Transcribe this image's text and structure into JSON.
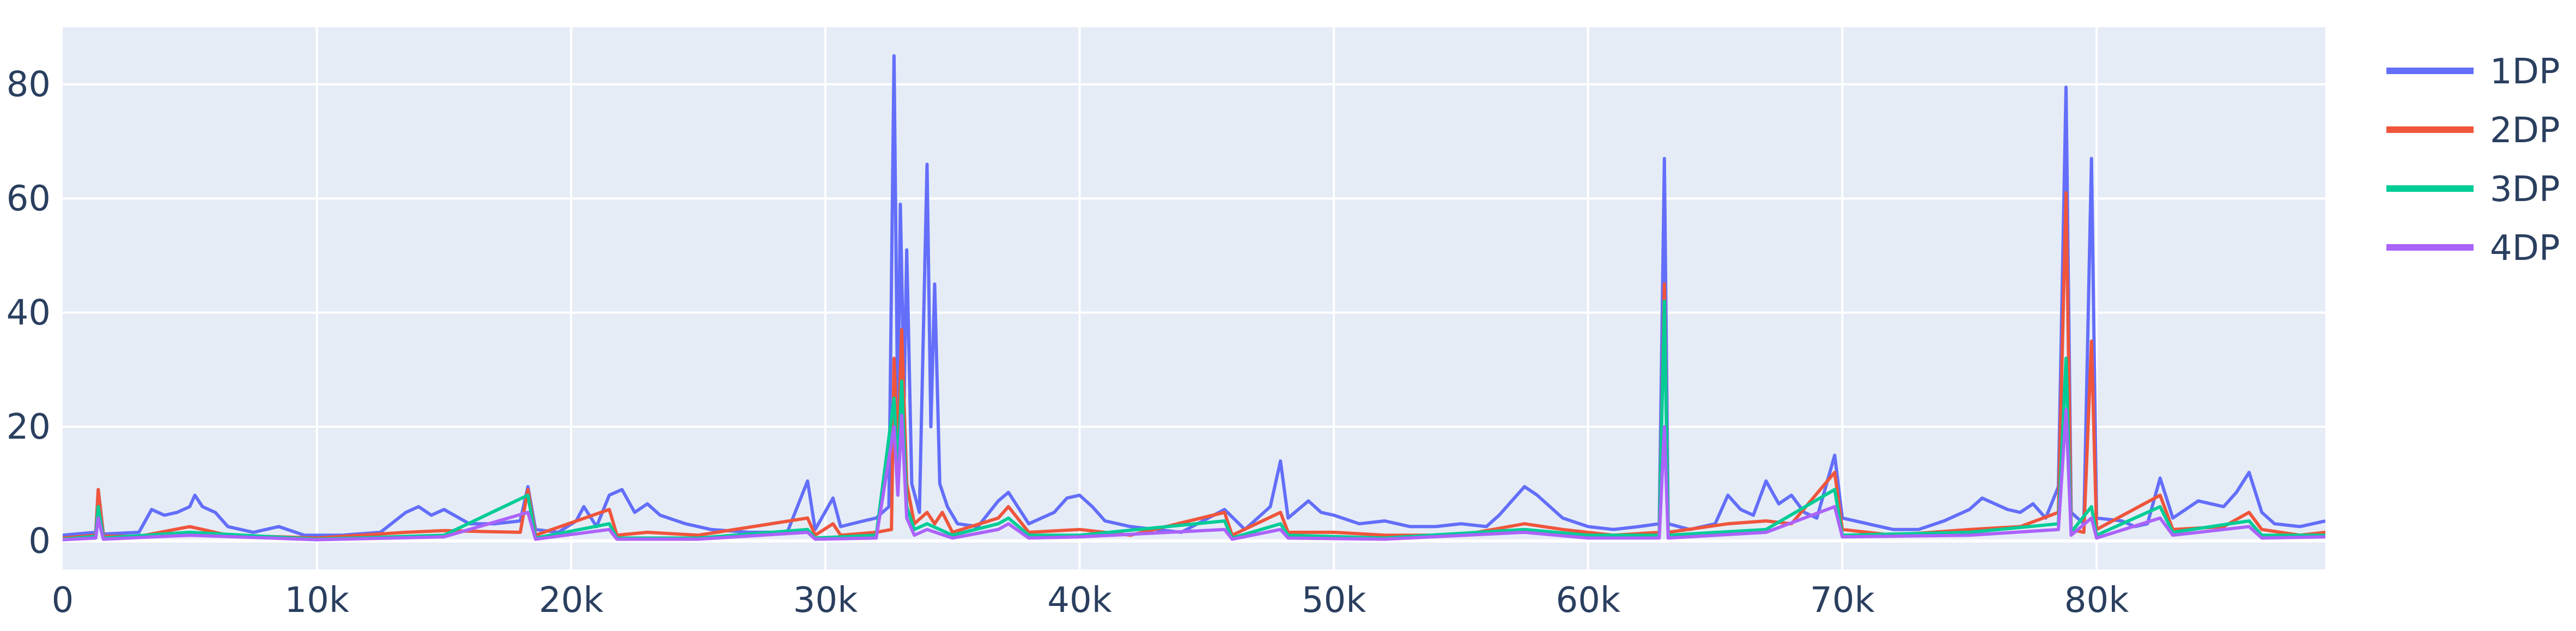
{
  "chart_data": {
    "type": "line",
    "title": "",
    "xlabel": "",
    "ylabel": "",
    "xlim": [
      0,
      89000
    ],
    "ylim": [
      -5,
      90
    ],
    "x_ticks": [
      0,
      10000,
      20000,
      30000,
      40000,
      50000,
      60000,
      70000,
      80000
    ],
    "x_tick_labels": [
      "0",
      "10k",
      "20k",
      "30k",
      "40k",
      "50k",
      "60k",
      "70k",
      "80k"
    ],
    "y_ticks": [
      0,
      20,
      40,
      60,
      80
    ],
    "y_tick_labels": [
      "0",
      "20",
      "40",
      "60",
      "80"
    ],
    "grid": true,
    "legend_position": "right",
    "plot_background": "#e5ecf6",
    "series": [
      {
        "name": "1DP",
        "color": "#636efa",
        "points": [
          [
            0,
            1.0
          ],
          [
            1300,
            1.5
          ],
          [
            1400,
            9.0
          ],
          [
            1600,
            1.2
          ],
          [
            3000,
            1.5
          ],
          [
            3500,
            5.5
          ],
          [
            4000,
            4.5
          ],
          [
            4500,
            5.0
          ],
          [
            5000,
            6.0
          ],
          [
            5200,
            8.0
          ],
          [
            5500,
            6.0
          ],
          [
            6000,
            5.0
          ],
          [
            6500,
            2.5
          ],
          [
            7500,
            1.5
          ],
          [
            8500,
            2.5
          ],
          [
            9500,
            1.0
          ],
          [
            11000,
            1.0
          ],
          [
            12500,
            1.5
          ],
          [
            13500,
            5.0
          ],
          [
            14000,
            6.0
          ],
          [
            14500,
            4.5
          ],
          [
            15000,
            5.5
          ],
          [
            16000,
            3.0
          ],
          [
            17000,
            3.0
          ],
          [
            18000,
            3.5
          ],
          [
            18300,
            9.5
          ],
          [
            18600,
            2.0
          ],
          [
            19500,
            1.5
          ],
          [
            20200,
            3.5
          ],
          [
            20500,
            6.0
          ],
          [
            21000,
            2.5
          ],
          [
            21500,
            8.0
          ],
          [
            22000,
            9.0
          ],
          [
            22500,
            5.0
          ],
          [
            23000,
            6.5
          ],
          [
            23500,
            4.5
          ],
          [
            24500,
            3.0
          ],
          [
            25500,
            2.0
          ],
          [
            27000,
            1.5
          ],
          [
            28500,
            1.5
          ],
          [
            29300,
            10.5
          ],
          [
            29600,
            2.0
          ],
          [
            30300,
            7.5
          ],
          [
            30600,
            2.5
          ],
          [
            31500,
            3.5
          ],
          [
            32000,
            4.0
          ],
          [
            32500,
            6.0
          ],
          [
            32700,
            85.0
          ],
          [
            32850,
            20.0
          ],
          [
            32950,
            59.0
          ],
          [
            33100,
            25.0
          ],
          [
            33200,
            51.0
          ],
          [
            33400,
            10.0
          ],
          [
            33700,
            5.0
          ],
          [
            34000,
            66.0
          ],
          [
            34150,
            20.0
          ],
          [
            34300,
            45.0
          ],
          [
            34500,
            10.0
          ],
          [
            34800,
            6.0
          ],
          [
            35200,
            3.0
          ],
          [
            36000,
            2.5
          ],
          [
            36800,
            7.0
          ],
          [
            37200,
            8.5
          ],
          [
            38000,
            3.0
          ],
          [
            39000,
            5.0
          ],
          [
            39500,
            7.5
          ],
          [
            40000,
            8.0
          ],
          [
            40500,
            6.0
          ],
          [
            41000,
            3.5
          ],
          [
            42000,
            2.5
          ],
          [
            43000,
            2.0
          ],
          [
            44000,
            1.5
          ],
          [
            45700,
            5.5
          ],
          [
            46500,
            2.0
          ],
          [
            47500,
            6.0
          ],
          [
            47900,
            14.0
          ],
          [
            48200,
            4.0
          ],
          [
            49000,
            7.0
          ],
          [
            49500,
            5.0
          ],
          [
            50000,
            4.5
          ],
          [
            51000,
            3.0
          ],
          [
            52000,
            3.5
          ],
          [
            53000,
            2.5
          ],
          [
            54000,
            2.5
          ],
          [
            55000,
            3.0
          ],
          [
            56000,
            2.5
          ],
          [
            56500,
            4.5
          ],
          [
            57000,
            7.0
          ],
          [
            57500,
            9.5
          ],
          [
            58000,
            8.0
          ],
          [
            58500,
            6.0
          ],
          [
            59000,
            4.0
          ],
          [
            60000,
            2.5
          ],
          [
            61000,
            2.0
          ],
          [
            62000,
            2.5
          ],
          [
            62800,
            3.0
          ],
          [
            63000,
            67.0
          ],
          [
            63150,
            3.0
          ],
          [
            64000,
            2.0
          ],
          [
            65000,
            3.0
          ],
          [
            65500,
            8.0
          ],
          [
            66000,
            5.5
          ],
          [
            66500,
            4.5
          ],
          [
            67000,
            10.5
          ],
          [
            67500,
            6.5
          ],
          [
            68000,
            8.0
          ],
          [
            68500,
            5.0
          ],
          [
            69000,
            4.0
          ],
          [
            69700,
            15.0
          ],
          [
            70000,
            4.0
          ],
          [
            71000,
            3.0
          ],
          [
            72000,
            2.0
          ],
          [
            73000,
            2.0
          ],
          [
            74000,
            3.5
          ],
          [
            75000,
            5.5
          ],
          [
            75500,
            7.5
          ],
          [
            76000,
            6.5
          ],
          [
            76500,
            5.5
          ],
          [
            77000,
            5.0
          ],
          [
            77500,
            6.5
          ],
          [
            78000,
            4.0
          ],
          [
            78500,
            9.5
          ],
          [
            78800,
            79.5
          ],
          [
            79000,
            5.0
          ],
          [
            79500,
            3.0
          ],
          [
            79800,
            67.0
          ],
          [
            80000,
            4.0
          ],
          [
            81000,
            3.5
          ],
          [
            81500,
            2.5
          ],
          [
            82000,
            3.0
          ],
          [
            82500,
            11.0
          ],
          [
            83000,
            4.0
          ],
          [
            84000,
            7.0
          ],
          [
            85000,
            6.0
          ],
          [
            85500,
            8.5
          ],
          [
            86000,
            12.0
          ],
          [
            86500,
            5.0
          ],
          [
            87000,
            3.0
          ],
          [
            88000,
            2.5
          ],
          [
            89000,
            3.5
          ]
        ]
      },
      {
        "name": "2DP",
        "color": "#ef553b",
        "points": [
          [
            0,
            0.5
          ],
          [
            1300,
            1.0
          ],
          [
            1400,
            9.0
          ],
          [
            1600,
            0.8
          ],
          [
            3000,
            0.8
          ],
          [
            5000,
            2.5
          ],
          [
            6500,
            1.0
          ],
          [
            10000,
            0.5
          ],
          [
            13500,
            1.5
          ],
          [
            15000,
            1.8
          ],
          [
            18000,
            1.5
          ],
          [
            18300,
            9.0
          ],
          [
            18600,
            1.0
          ],
          [
            21500,
            5.5
          ],
          [
            21800,
            1.0
          ],
          [
            23000,
            1.5
          ],
          [
            25000,
            1.0
          ],
          [
            29300,
            4.0
          ],
          [
            29600,
            1.0
          ],
          [
            30300,
            3.0
          ],
          [
            30600,
            1.0
          ],
          [
            32000,
            1.5
          ],
          [
            32600,
            2.0
          ],
          [
            32700,
            32.0
          ],
          [
            32850,
            15.0
          ],
          [
            33000,
            37.0
          ],
          [
            33200,
            10.0
          ],
          [
            33500,
            3.0
          ],
          [
            34000,
            5.0
          ],
          [
            34300,
            3.0
          ],
          [
            34600,
            5.0
          ],
          [
            35000,
            1.5
          ],
          [
            36800,
            4.0
          ],
          [
            37200,
            6.0
          ],
          [
            38000,
            1.5
          ],
          [
            40000,
            2.0
          ],
          [
            42000,
            1.0
          ],
          [
            45700,
            5.0
          ],
          [
            46000,
            1.0
          ],
          [
            47900,
            5.0
          ],
          [
            48200,
            1.5
          ],
          [
            50000,
            1.5
          ],
          [
            52000,
            1.0
          ],
          [
            55000,
            1.0
          ],
          [
            57500,
            3.0
          ],
          [
            59000,
            2.0
          ],
          [
            61000,
            1.0
          ],
          [
            62800,
            1.5
          ],
          [
            63000,
            45.0
          ],
          [
            63150,
            1.5
          ],
          [
            65500,
            3.0
          ],
          [
            67000,
            3.5
          ],
          [
            68000,
            3.0
          ],
          [
            69700,
            12.0
          ],
          [
            70000,
            2.0
          ],
          [
            72000,
            1.0
          ],
          [
            75000,
            2.0
          ],
          [
            77000,
            2.5
          ],
          [
            78500,
            5.0
          ],
          [
            78800,
            61.0
          ],
          [
            79000,
            2.0
          ],
          [
            79500,
            1.5
          ],
          [
            79800,
            35.0
          ],
          [
            80000,
            2.0
          ],
          [
            82500,
            8.0
          ],
          [
            83000,
            2.0
          ],
          [
            85000,
            2.5
          ],
          [
            86000,
            5.0
          ],
          [
            86500,
            2.0
          ],
          [
            88000,
            1.0
          ],
          [
            89000,
            1.5
          ]
        ]
      },
      {
        "name": "3DP",
        "color": "#00cc96",
        "points": [
          [
            0,
            0.3
          ],
          [
            1300,
            0.8
          ],
          [
            1400,
            6.0
          ],
          [
            1600,
            0.5
          ],
          [
            5000,
            1.5
          ],
          [
            10000,
            0.3
          ],
          [
            15000,
            1.0
          ],
          [
            18300,
            8.0
          ],
          [
            18600,
            0.5
          ],
          [
            21500,
            3.0
          ],
          [
            21800,
            0.5
          ],
          [
            25000,
            0.5
          ],
          [
            29300,
            2.0
          ],
          [
            29600,
            0.5
          ],
          [
            32000,
            1.0
          ],
          [
            32700,
            25.0
          ],
          [
            32850,
            12.0
          ],
          [
            33000,
            28.0
          ],
          [
            33200,
            6.0
          ],
          [
            33500,
            2.0
          ],
          [
            34000,
            3.0
          ],
          [
            35000,
            1.0
          ],
          [
            36800,
            3.0
          ],
          [
            37200,
            4.0
          ],
          [
            38000,
            1.0
          ],
          [
            40000,
            1.0
          ],
          [
            45700,
            3.5
          ],
          [
            46000,
            0.5
          ],
          [
            47900,
            3.0
          ],
          [
            48200,
            1.0
          ],
          [
            52000,
            0.5
          ],
          [
            57500,
            2.0
          ],
          [
            60000,
            1.0
          ],
          [
            62800,
            1.0
          ],
          [
            63000,
            42.0
          ],
          [
            63150,
            1.0
          ],
          [
            67000,
            2.0
          ],
          [
            69700,
            9.0
          ],
          [
            70000,
            1.0
          ],
          [
            75000,
            1.5
          ],
          [
            78500,
            3.0
          ],
          [
            78800,
            32.0
          ],
          [
            79000,
            1.5
          ],
          [
            79800,
            6.0
          ],
          [
            80000,
            1.0
          ],
          [
            82500,
            6.0
          ],
          [
            83000,
            1.5
          ],
          [
            86000,
            3.5
          ],
          [
            86500,
            1.0
          ],
          [
            89000,
            1.0
          ]
        ]
      },
      {
        "name": "4DP",
        "color": "#ab63fa",
        "points": [
          [
            0,
            0.2
          ],
          [
            1300,
            0.5
          ],
          [
            1400,
            4.0
          ],
          [
            1600,
            0.3
          ],
          [
            5000,
            1.0
          ],
          [
            10000,
            0.2
          ],
          [
            15000,
            0.7
          ],
          [
            18300,
            5.0
          ],
          [
            18600,
            0.3
          ],
          [
            21500,
            2.0
          ],
          [
            21800,
            0.3
          ],
          [
            25000,
            0.3
          ],
          [
            29300,
            1.5
          ],
          [
            29600,
            0.3
          ],
          [
            32000,
            0.5
          ],
          [
            32700,
            20.0
          ],
          [
            32850,
            8.0
          ],
          [
            33000,
            22.0
          ],
          [
            33200,
            4.0
          ],
          [
            33500,
            1.0
          ],
          [
            34000,
            2.0
          ],
          [
            35000,
            0.5
          ],
          [
            36800,
            2.0
          ],
          [
            37200,
            3.0
          ],
          [
            38000,
            0.5
          ],
          [
            40000,
            0.7
          ],
          [
            45700,
            2.0
          ],
          [
            46000,
            0.3
          ],
          [
            47900,
            2.0
          ],
          [
            48200,
            0.5
          ],
          [
            52000,
            0.3
          ],
          [
            57500,
            1.5
          ],
          [
            60000,
            0.5
          ],
          [
            62800,
            0.5
          ],
          [
            63000,
            20.0
          ],
          [
            63150,
            0.5
          ],
          [
            67000,
            1.5
          ],
          [
            69700,
            6.0
          ],
          [
            70000,
            0.7
          ],
          [
            75000,
            1.0
          ],
          [
            78500,
            2.0
          ],
          [
            78800,
            23.0
          ],
          [
            79000,
            1.0
          ],
          [
            79800,
            4.0
          ],
          [
            80000,
            0.5
          ],
          [
            82500,
            4.0
          ],
          [
            83000,
            1.0
          ],
          [
            86000,
            2.5
          ],
          [
            86500,
            0.5
          ],
          [
            89000,
            0.7
          ]
        ]
      }
    ]
  }
}
